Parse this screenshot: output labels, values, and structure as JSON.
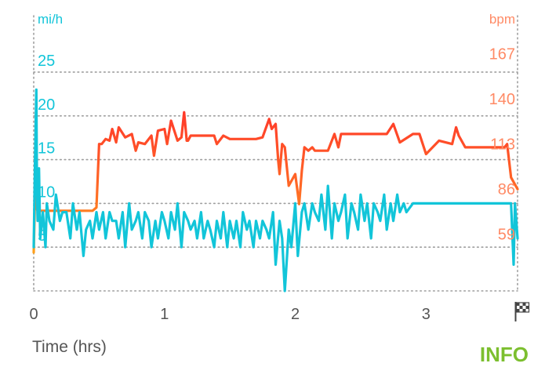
{
  "chart_data": {
    "type": "line",
    "xlabel": "Time (hrs)",
    "x_ticks": [
      "0",
      "1",
      "2",
      "3"
    ],
    "xlim": [
      0,
      3.7
    ],
    "left_axis": {
      "unit": "mi/h",
      "ticks": [
        "5",
        "10",
        "15",
        "20",
        "25"
      ],
      "ylim": [
        0,
        26.7
      ]
    },
    "right_axis": {
      "unit": "bpm",
      "ticks": [
        "59",
        "86",
        "113",
        "140",
        "167"
      ],
      "ylim": [
        32,
        172
      ]
    },
    "grid": true,
    "series": [
      {
        "axis": "right",
        "color": "#ff6633",
        "x": [
          0.0,
          0.01,
          0.02,
          0.03,
          0.05,
          0.08,
          0.15,
          0.25,
          0.35,
          0.45,
          0.48,
          0.5,
          0.52,
          0.55,
          0.58,
          0.6,
          0.63,
          0.65,
          0.7,
          0.75,
          0.78,
          0.8,
          0.85,
          0.9,
          0.92,
          0.95,
          1.0,
          1.02,
          1.05,
          1.1,
          1.13,
          1.15,
          1.17,
          1.18,
          1.2,
          1.25,
          1.3,
          1.38,
          1.4,
          1.45,
          1.5,
          1.55,
          1.6,
          1.65,
          1.7,
          1.75,
          1.8,
          1.82,
          1.85,
          1.87,
          1.88,
          1.9,
          1.92,
          1.95,
          2.0,
          2.03,
          2.05,
          2.07,
          2.1,
          2.13,
          2.15,
          2.2,
          2.25,
          2.3,
          2.33,
          2.35,
          2.4,
          2.45,
          2.5,
          2.6,
          2.7,
          2.75,
          2.8,
          2.9,
          2.95,
          3.0,
          3.1,
          3.2,
          3.23,
          3.25,
          3.3,
          3.4,
          3.5,
          3.55,
          3.57,
          3.6,
          3.62,
          3.65,
          3.7
        ],
        "values": [
          55,
          90,
          82,
          80,
          80,
          80,
          80,
          80,
          80,
          80,
          82,
          120,
          120,
          123,
          122,
          129,
          121,
          130,
          124,
          126,
          116,
          121,
          120,
          125,
          113,
          128,
          129,
          120,
          134,
          122,
          124,
          139,
          122,
          122,
          125,
          125,
          125,
          125,
          120,
          125,
          123,
          123,
          123,
          123,
          123,
          124,
          135,
          129,
          132,
          110,
          102,
          120,
          118,
          95,
          102,
          84,
          104,
          118,
          116,
          118,
          116,
          116,
          116,
          126,
          118,
          126,
          126,
          126,
          126,
          126,
          126,
          132,
          121,
          126,
          126,
          114,
          122,
          120,
          130,
          125,
          118,
          118,
          118,
          118,
          118,
          118,
          120,
          100,
          93
        ]
      },
      {
        "axis": "left",
        "color": "#12c5d9",
        "x": [
          0.0,
          0.01,
          0.02,
          0.025,
          0.03,
          0.04,
          0.05,
          0.07,
          0.09,
          0.1,
          0.12,
          0.15,
          0.17,
          0.2,
          0.22,
          0.25,
          0.28,
          0.3,
          0.33,
          0.35,
          0.38,
          0.4,
          0.43,
          0.45,
          0.48,
          0.5,
          0.53,
          0.55,
          0.58,
          0.6,
          0.63,
          0.65,
          0.68,
          0.7,
          0.73,
          0.75,
          0.78,
          0.8,
          0.83,
          0.85,
          0.88,
          0.9,
          0.93,
          0.95,
          0.98,
          1.0,
          1.03,
          1.05,
          1.08,
          1.1,
          1.13,
          1.15,
          1.18,
          1.2,
          1.23,
          1.25,
          1.28,
          1.3,
          1.33,
          1.35,
          1.38,
          1.4,
          1.43,
          1.45,
          1.48,
          1.5,
          1.53,
          1.55,
          1.58,
          1.6,
          1.63,
          1.65,
          1.68,
          1.7,
          1.73,
          1.75,
          1.78,
          1.8,
          1.83,
          1.85,
          1.88,
          1.9,
          1.92,
          1.95,
          1.97,
          2.0,
          2.02,
          2.05,
          2.07,
          2.1,
          2.13,
          2.15,
          2.18,
          2.2,
          2.23,
          2.25,
          2.28,
          2.3,
          2.33,
          2.35,
          2.38,
          2.4,
          2.43,
          2.45,
          2.48,
          2.5,
          2.53,
          2.55,
          2.58,
          2.6,
          2.63,
          2.65,
          2.68,
          2.7,
          2.73,
          2.75,
          2.78,
          2.8,
          2.83,
          2.85,
          2.9,
          3.0,
          3.1,
          3.2,
          3.3,
          3.4,
          3.5,
          3.6,
          3.65,
          3.67,
          3.68,
          3.7
        ],
        "values": [
          5,
          15,
          23,
          11,
          8,
          14,
          6,
          9,
          5,
          10,
          8,
          7,
          11,
          8,
          9,
          9,
          6,
          10,
          7,
          9,
          4,
          7,
          8,
          6,
          9,
          7,
          9,
          6,
          9,
          8,
          8,
          6,
          9,
          5,
          10,
          7,
          8,
          9,
          6,
          9,
          8,
          5,
          8,
          6,
          9,
          8,
          6,
          9,
          7,
          10,
          5,
          9,
          8,
          7,
          8,
          6,
          9,
          6,
          8,
          7,
          5,
          8,
          6,
          9,
          5,
          8,
          6,
          8,
          5,
          9,
          7,
          8,
          5,
          8,
          6,
          8,
          7,
          6,
          9,
          3,
          8,
          6,
          0,
          7,
          5,
          10,
          4,
          9,
          10,
          7,
          10,
          9,
          8,
          11,
          7,
          12,
          6,
          10,
          8,
          9,
          11,
          6,
          10,
          9,
          7,
          11,
          8,
          10,
          6,
          10,
          9,
          8,
          11,
          7,
          10,
          8,
          11,
          9,
          10,
          9,
          10,
          10,
          10,
          10,
          10,
          10,
          10,
          10,
          10,
          3,
          10,
          6
        ]
      }
    ]
  },
  "info_label": "INFO",
  "finish_flag_icon": "checkered-flag-icon",
  "colors": {
    "speed": "#12c5d9",
    "heart_rate": "#ff6633",
    "heart_rate_low": "#ff9a1a",
    "info": "#7cbf2f",
    "grid": "#9e9e9e",
    "axis_text": "#555555"
  }
}
